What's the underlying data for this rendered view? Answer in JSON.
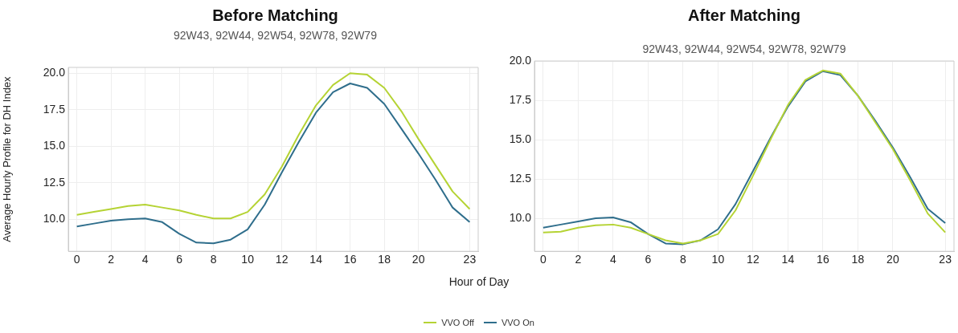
{
  "chart_data": [
    {
      "type": "line",
      "title": "Before Matching",
      "subtitle": "92W43, 92W44, 92W54, 92W78, 92W79",
      "ylabel": "Average Hourly Profile for DH Index",
      "xlabel": "Hour of Day",
      "x": [
        0,
        1,
        2,
        3,
        4,
        5,
        6,
        7,
        8,
        9,
        10,
        11,
        12,
        13,
        14,
        15,
        16,
        17,
        18,
        19,
        20,
        21,
        22,
        23
      ],
      "series": [
        {
          "name": "VVO Off",
          "color": "#b5d334",
          "values": [
            10.3,
            10.5,
            10.7,
            10.9,
            11.0,
            10.8,
            10.6,
            10.3,
            10.05,
            10.05,
            10.5,
            11.7,
            13.6,
            15.8,
            17.8,
            19.2,
            20.0,
            19.9,
            19.0,
            17.4,
            15.5,
            13.7,
            11.9,
            10.7
          ]
        },
        {
          "name": "VVO On",
          "color": "#2f6e8c",
          "values": [
            9.5,
            9.7,
            9.9,
            10.0,
            10.05,
            9.8,
            9.0,
            8.4,
            8.35,
            8.6,
            9.3,
            11.0,
            13.2,
            15.3,
            17.3,
            18.7,
            19.3,
            19.0,
            17.9,
            16.2,
            14.5,
            12.7,
            10.8,
            9.8
          ]
        }
      ],
      "xlim": [
        -0.5,
        23.5
      ],
      "xticks": [
        0,
        2,
        4,
        6,
        8,
        10,
        12,
        14,
        16,
        18,
        20,
        23
      ],
      "ylim": [
        7.8,
        20.4
      ],
      "yticks": [
        {
          "value": 10,
          "label": "10.0"
        },
        {
          "value": 12.5,
          "label": "12.5"
        },
        {
          "value": 15,
          "label": "15.0"
        },
        {
          "value": 17.5,
          "label": "17.5"
        },
        {
          "value": 20,
          "label": "20.0"
        }
      ],
      "grid": true,
      "legend": "bottom",
      "marker": "none",
      "line_style": "solid"
    },
    {
      "type": "line",
      "title": "After Matching",
      "subtitle": "92W43, 92W44, 92W54, 92W78, 92W79",
      "x": [
        0,
        1,
        2,
        3,
        4,
        5,
        6,
        7,
        8,
        9,
        10,
        11,
        12,
        13,
        14,
        15,
        16,
        17,
        18,
        19,
        20,
        21,
        22,
        23
      ],
      "series": [
        {
          "name": "VVO Off",
          "color": "#b5d334",
          "values": [
            9.1,
            9.15,
            9.4,
            9.55,
            9.6,
            9.4,
            9.0,
            8.6,
            8.4,
            8.6,
            9.0,
            10.5,
            12.7,
            15.0,
            17.2,
            18.8,
            19.4,
            19.2,
            17.8,
            16.1,
            14.4,
            12.4,
            10.3,
            9.1
          ]
        },
        {
          "name": "VVO On",
          "color": "#2f6e8c",
          "values": [
            9.4,
            9.6,
            9.8,
            10.0,
            10.05,
            9.75,
            9.0,
            8.4,
            8.35,
            8.6,
            9.3,
            10.9,
            13.0,
            15.1,
            17.1,
            18.7,
            19.35,
            19.1,
            17.8,
            16.2,
            14.5,
            12.6,
            10.6,
            9.7
          ]
        }
      ],
      "xlim": [
        -0.5,
        23.5
      ],
      "xticks": [
        0,
        2,
        4,
        6,
        8,
        10,
        12,
        14,
        16,
        18,
        20,
        23
      ],
      "ylim": [
        7.9,
        20.0
      ],
      "yticks": [
        {
          "value": 10,
          "label": "10.0"
        },
        {
          "value": 12.5,
          "label": "12.5"
        },
        {
          "value": 15,
          "label": "15.0"
        },
        {
          "value": 17.5,
          "label": "17.5"
        },
        {
          "value": 20,
          "label": "20.0"
        }
      ],
      "grid": true,
      "legend": "bottom",
      "marker": "none",
      "line_style": "solid"
    }
  ]
}
